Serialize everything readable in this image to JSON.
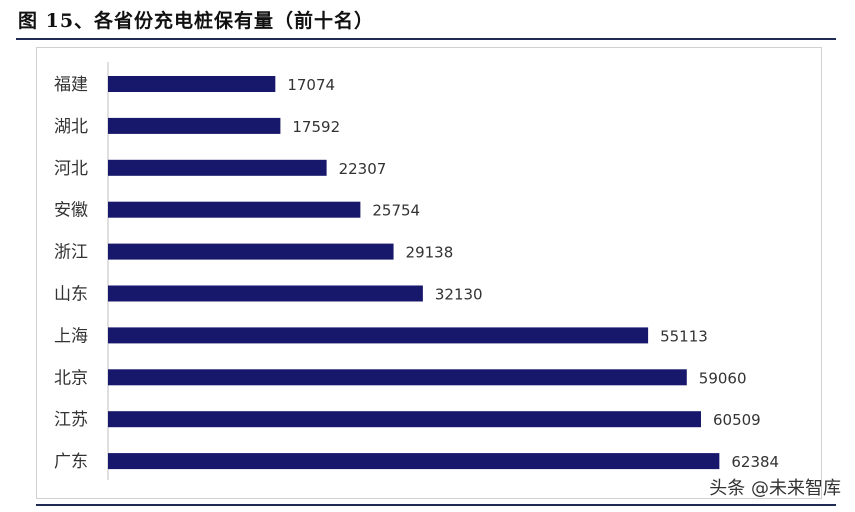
{
  "title": "图 15、各省份充电桩保有量（前十名）",
  "watermark": "头条 @未来智库",
  "colors": {
    "bar": "#17176b",
    "rule": "#1f2a55",
    "text": "#333333"
  },
  "chart_data": {
    "type": "bar",
    "orientation": "horizontal",
    "title": "图 15、各省份充电桩保有量（前十名）",
    "categories": [
      "福建",
      "湖北",
      "河北",
      "安徽",
      "浙江",
      "山东",
      "上海",
      "北京",
      "江苏",
      "广东"
    ],
    "values": [
      17074,
      17592,
      22307,
      25754,
      29138,
      32130,
      55113,
      59060,
      60509,
      62384
    ],
    "data_labels": [
      "17074",
      "17592",
      "22307",
      "25754",
      "29138",
      "32130",
      "55113",
      "59060",
      "60509",
      "62384"
    ],
    "xlabel": "",
    "ylabel": "",
    "xlim": [
      0,
      70000
    ],
    "grid": false,
    "legend": "none"
  }
}
